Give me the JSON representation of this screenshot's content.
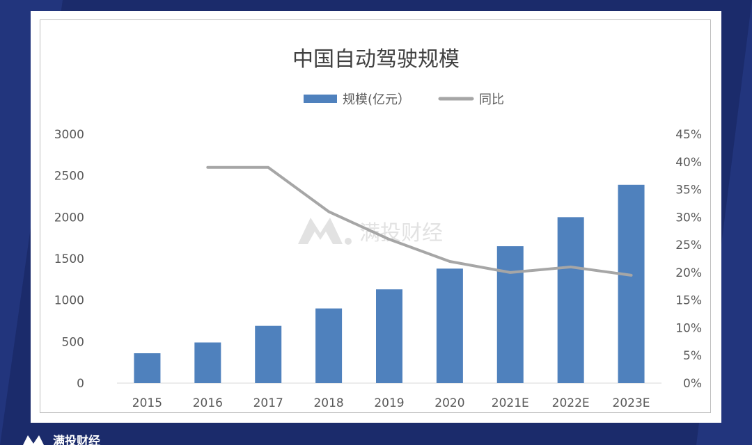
{
  "brand": {
    "name": "满投财经",
    "logo_icon": "mountain-logo-icon"
  },
  "colors": {
    "bar": "#4f81bd",
    "line": "#a6a6a6",
    "background": "#1b2b6b"
  },
  "chart_data": {
    "type": "bar",
    "title": "中国自动驾驶规模",
    "categories": [
      "2015",
      "2016",
      "2017",
      "2018",
      "2019",
      "2020",
      "2021E",
      "2022E",
      "2023E"
    ],
    "series": [
      {
        "name": "规模(亿元）",
        "type": "bar",
        "axis": "left",
        "values": [
          360,
          490,
          690,
          900,
          1130,
          1380,
          1650,
          2000,
          2390
        ]
      },
      {
        "name": "同比",
        "type": "line",
        "axis": "right",
        "values": [
          null,
          0.39,
          0.39,
          0.31,
          0.26,
          0.22,
          0.2,
          0.21,
          0.195
        ]
      }
    ],
    "y_left": {
      "min": 0,
      "max": 3000,
      "ticks": [
        "0",
        "500",
        "1000",
        "1500",
        "2000",
        "2500",
        "3000"
      ]
    },
    "y_right": {
      "min": 0,
      "max": 0.45,
      "ticks": [
        "0%",
        "5%",
        "10%",
        "15%",
        "20%",
        "25%",
        "30%",
        "35%",
        "40%",
        "45%"
      ]
    },
    "legend_position": "top-center",
    "grid": false,
    "watermark": "满投财经"
  }
}
